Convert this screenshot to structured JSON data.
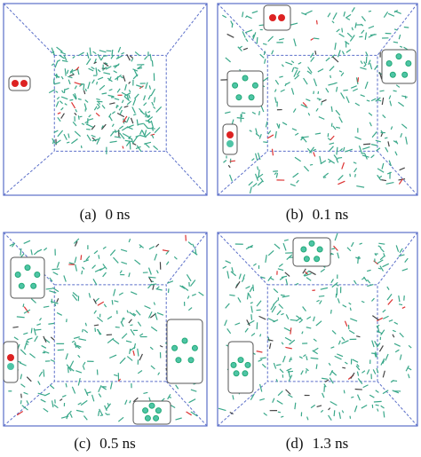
{
  "panels": [
    {
      "label": "(a)",
      "time": "0 ns"
    },
    {
      "label": "(b)",
      "time": "0.1 ns"
    },
    {
      "label": "(c)",
      "time": "0.5 ns"
    },
    {
      "label": "(d)",
      "time": "1.3 ns"
    }
  ]
}
